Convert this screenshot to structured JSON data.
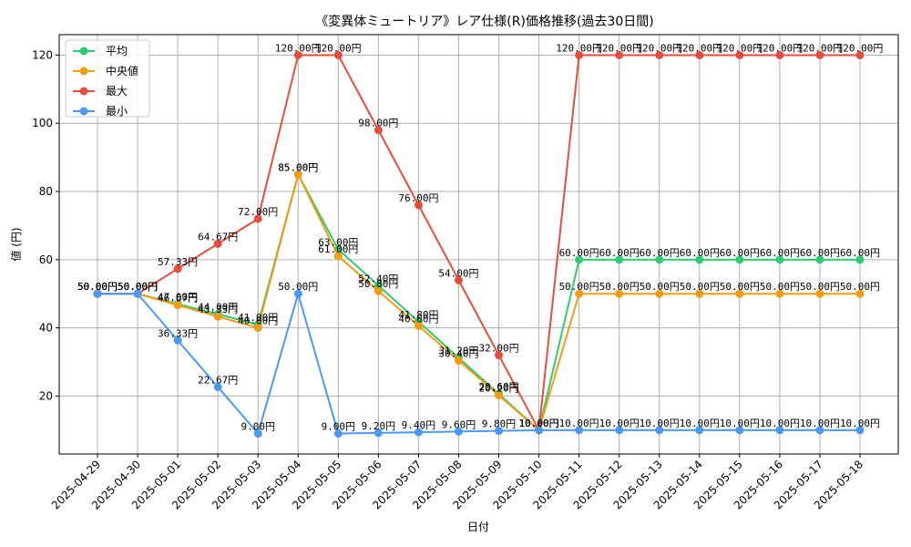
{
  "chart_data": {
    "type": "line",
    "title": "《変異体ミュートリア》レア仕様(R)価格推移(過去30日間)",
    "xlabel": "日付",
    "ylabel": "値 (円)",
    "ylim": [
      3,
      126
    ],
    "yticks": [
      20,
      40,
      60,
      80,
      100,
      120
    ],
    "grid": true,
    "legend_position": "top-left",
    "value_suffix": "円",
    "categories": [
      "2025-04-29",
      "2025-04-30",
      "2025-05-01",
      "2025-05-02",
      "2025-05-03",
      "2025-05-04",
      "2025-05-05",
      "2025-05-06",
      "2025-05-07",
      "2025-05-08",
      "2025-05-09",
      "2025-05-10",
      "2025-05-11",
      "2025-05-12",
      "2025-05-13",
      "2025-05-14",
      "2025-05-15",
      "2025-05-16",
      "2025-05-17",
      "2025-05-18"
    ],
    "series": [
      {
        "name": "平均",
        "color": "#2ecc71",
        "values": [
          50.0,
          50.0,
          47.0,
          44.0,
          41.0,
          85.0,
          63.0,
          52.4,
          41.8,
          31.2,
          20.6,
          10.0,
          60.0,
          60.0,
          60.0,
          60.0,
          60.0,
          60.0,
          60.0,
          60.0
        ]
      },
      {
        "name": "中央値",
        "color": "#f39c12",
        "values": [
          50.0,
          50.0,
          46.67,
          43.33,
          40.0,
          85.0,
          61.0,
          50.8,
          40.6,
          30.4,
          20.2,
          10.0,
          50.0,
          50.0,
          50.0,
          50.0,
          50.0,
          50.0,
          50.0,
          50.0
        ]
      },
      {
        "name": "最大",
        "color": "#e74c3c",
        "values": [
          50.0,
          50.0,
          57.33,
          64.67,
          72.0,
          120.0,
          120.0,
          98.0,
          76.0,
          54.0,
          32.0,
          10.0,
          120.0,
          120.0,
          120.0,
          120.0,
          120.0,
          120.0,
          120.0,
          120.0
        ]
      },
      {
        "name": "最小",
        "color": "#4a9af5",
        "values": [
          50.0,
          50.0,
          36.33,
          22.67,
          9.0,
          50.0,
          9.0,
          9.2,
          9.4,
          9.6,
          9.8,
          10.0,
          10.0,
          10.0,
          10.0,
          10.0,
          10.0,
          10.0,
          10.0,
          10.0
        ]
      }
    ]
  }
}
